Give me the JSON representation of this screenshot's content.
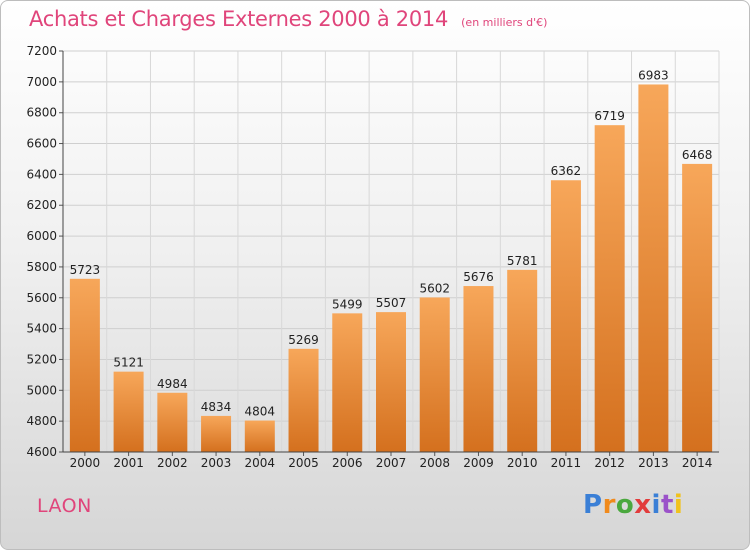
{
  "header": {
    "title": "Achats et Charges Externes 2000 à 2014",
    "unit": "(en milliers d'€)"
  },
  "footer": {
    "city": "LAON",
    "logo_letters": [
      "P",
      "r",
      "o",
      "x",
      "i",
      "t",
      "i"
    ],
    "logo_colors": [
      "#3a7fd6",
      "#f08a1c",
      "#4aa83e",
      "#e23c3c",
      "#3a7fd6",
      "#9b52c9",
      "#f0c21c"
    ]
  },
  "chart_data": {
    "type": "bar",
    "title": "Achats et Charges Externes 2000 à 2014",
    "subtitle": "(en milliers d'€)",
    "categories": [
      "2000",
      "2001",
      "2002",
      "2003",
      "2004",
      "2005",
      "2006",
      "2007",
      "2008",
      "2009",
      "2010",
      "2011",
      "2012",
      "2013",
      "2014"
    ],
    "values": [
      5723,
      5121,
      4984,
      4834,
      4804,
      5269,
      5499,
      5507,
      5602,
      5676,
      5781,
      6362,
      6719,
      6983,
      6468
    ],
    "data_labels": [
      "5723",
      "5121",
      "4984",
      "4834",
      "4804",
      "5269",
      "5499",
      "5507",
      "5602",
      "5676",
      "5781",
      "6362",
      "6719",
      "6983",
      "6468"
    ],
    "ylim": [
      4600,
      7200
    ],
    "yticks": [
      4600,
      4800,
      5000,
      5200,
      5400,
      5600,
      5800,
      6000,
      6200,
      6400,
      6600,
      6800,
      7000,
      7200
    ],
    "grid": true,
    "bar_color_top": "#f7a75a",
    "bar_color_bottom": "#d4701e"
  }
}
